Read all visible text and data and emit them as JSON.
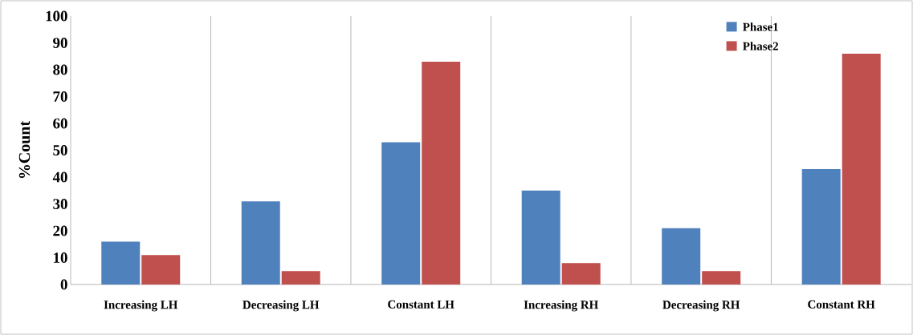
{
  "chart_data": {
    "type": "bar",
    "ylabel": "%Count",
    "categories": [
      "Increasing LH",
      "Decreasing LH",
      "Constant LH",
      "Increasing RH",
      "Decreasing RH",
      "Constant RH"
    ],
    "series": [
      {
        "name": "Phase1",
        "color": "#4f81bd",
        "values": [
          16,
          31,
          53,
          35,
          21,
          43
        ]
      },
      {
        "name": "Phase2",
        "color": "#c0504d",
        "values": [
          11,
          5,
          83,
          8,
          5,
          86
        ]
      }
    ],
    "ylim": [
      0,
      100
    ],
    "yticks": [
      0,
      10,
      20,
      30,
      40,
      50,
      60,
      70,
      80,
      90,
      100
    ],
    "grid": "x",
    "legend": "top right"
  }
}
